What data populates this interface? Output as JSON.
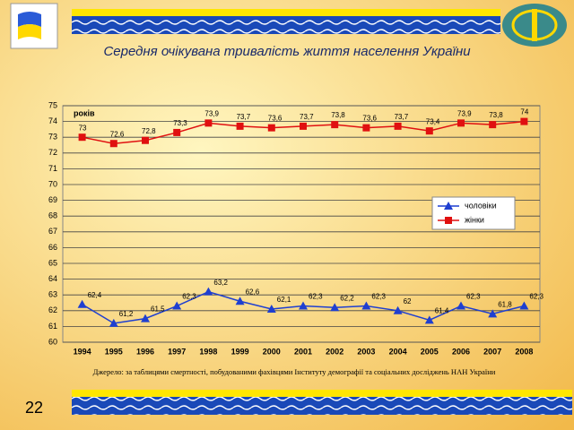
{
  "chart_data": {
    "type": "line",
    "title": "Середня очікувана тривалість життя населення України",
    "y_label": "років",
    "categories": [
      "1994",
      "1995",
      "1996",
      "1997",
      "1998",
      "1999",
      "2000",
      "2001",
      "2002",
      "2003",
      "2004",
      "2005",
      "2006",
      "2007",
      "2008"
    ],
    "series": [
      {
        "name": "чоловіки",
        "color": "#1f3fd0",
        "marker": "triangle",
        "values": [
          62.4,
          61.2,
          61.5,
          62.3,
          63.2,
          62.6,
          62.1,
          62.3,
          62.2,
          62.3,
          62,
          61.4,
          62.3,
          61.8,
          62.3
        ],
        "value_labels": [
          "62,4",
          "61,2",
          "61,5",
          "62,3",
          "63,2",
          "62,6",
          "62,1",
          "62,3",
          "62,2",
          "62,3",
          "62",
          "61,4",
          "62,3",
          "61,8",
          "62,3"
        ]
      },
      {
        "name": "жінки",
        "color": "#e01010",
        "marker": "square",
        "values": [
          73,
          72.6,
          72.8,
          73.3,
          73.9,
          73.7,
          73.6,
          73.7,
          73.8,
          73.6,
          73.7,
          73.4,
          73.9,
          73.8,
          74
        ],
        "value_labels": [
          "73",
          "72,6",
          "72,8",
          "73,3",
          "73,9",
          "73,7",
          "73,6",
          "73,7",
          "73,8",
          "73,6",
          "73,7",
          "73,4",
          "73,9",
          "73,8",
          "74"
        ]
      }
    ],
    "ylim": [
      60,
      75
    ],
    "yticks": [
      60,
      61,
      62,
      63,
      64,
      65,
      66,
      67,
      68,
      69,
      70,
      71,
      72,
      73,
      74,
      75
    ],
    "grid": true,
    "legend": "right"
  },
  "footer": {
    "source": "Джерело: за таблицями смертності, побудованими фахівцями Інституту демографії та соціальних досліджень НАН України",
    "page_number": "22"
  }
}
